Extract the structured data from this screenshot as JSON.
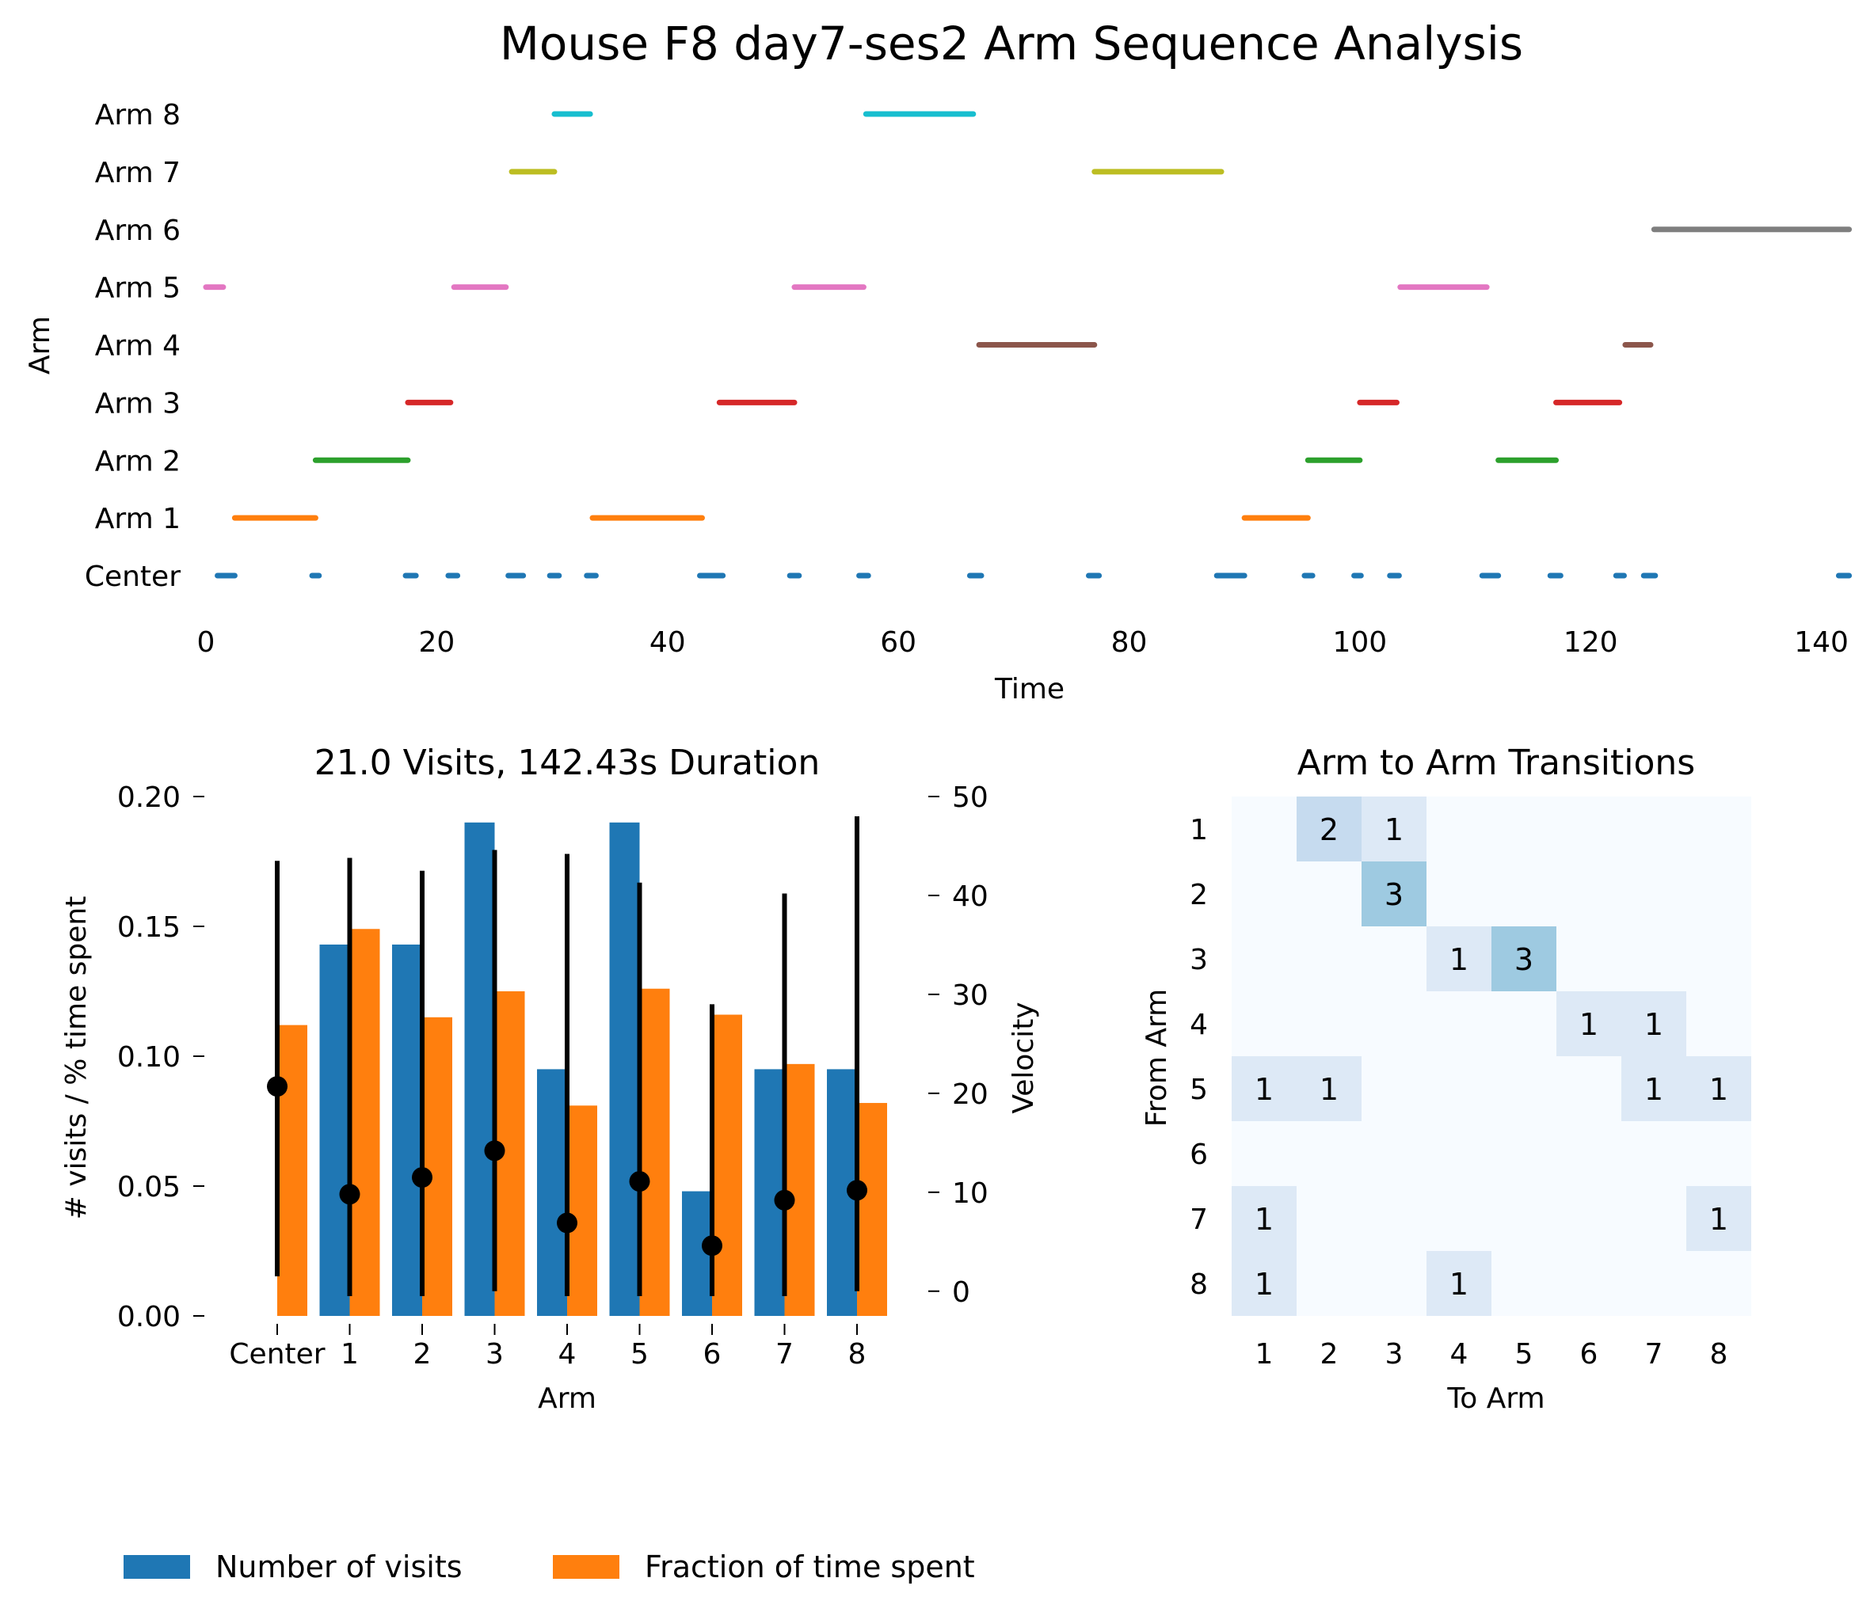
{
  "figure_title": "Mouse F8 day7-ses2 Arm Sequence Analysis",
  "colors": {
    "Center": "#1f77b4",
    "Arm 1": "#ff7f0e",
    "Arm 2": "#2ca02c",
    "Arm 3": "#d62728",
    "Arm 4": "#8c564b",
    "Arm 5": "#e377c2",
    "Arm 6": "#7f7f7f",
    "Arm 7": "#bcbd22",
    "Arm 8": "#17becf",
    "visits": "#1f77b4",
    "time": "#ff7f0e",
    "velocity": "#000000"
  },
  "legend": {
    "visits_label": "Number of visits",
    "time_label": "Fraction of time spent"
  },
  "chart_data": [
    {
      "type": "timeline",
      "title": "Mouse F8 day7-ses2 Arm Sequence Analysis",
      "xlabel": "Time",
      "ylabel": "Arm",
      "xlim": [
        0,
        142.43
      ],
      "xticks": [
        0,
        20,
        40,
        60,
        80,
        100,
        120,
        140
      ],
      "categories": [
        "Center",
        "Arm 1",
        "Arm 2",
        "Arm 3",
        "Arm 4",
        "Arm 5",
        "Arm 6",
        "Arm 7",
        "Arm 8"
      ],
      "segments": {
        "Center": [
          [
            1,
            2.5
          ],
          [
            9.2,
            9.8
          ],
          [
            17.3,
            18.2
          ],
          [
            21,
            21.8
          ],
          [
            26.2,
            27.5
          ],
          [
            29.8,
            30.6
          ],
          [
            33,
            33.8
          ],
          [
            42.8,
            44.8
          ],
          [
            50.6,
            51.4
          ],
          [
            56.6,
            57.4
          ],
          [
            66.2,
            67.2
          ],
          [
            76.5,
            77.4
          ],
          [
            87.6,
            90
          ],
          [
            95.2,
            95.9
          ],
          [
            99.5,
            100.1
          ],
          [
            102.6,
            103.4
          ],
          [
            110.6,
            112
          ],
          [
            116.5,
            117.4
          ],
          [
            122.2,
            122.9
          ],
          [
            124.6,
            125.6
          ],
          [
            141.5,
            142.4
          ]
        ],
        "Arm 1": [
          [
            2.5,
            9.5
          ],
          [
            33.5,
            43
          ],
          [
            90,
            95.5
          ]
        ],
        "Arm 2": [
          [
            9.5,
            17.5
          ],
          [
            95.5,
            100
          ],
          [
            112,
            117
          ]
        ],
        "Arm 3": [
          [
            17.5,
            21.2
          ],
          [
            44.5,
            51
          ],
          [
            100,
            103.2
          ],
          [
            117,
            122.5
          ]
        ],
        "Arm 4": [
          [
            67,
            77
          ],
          [
            123,
            125.2
          ]
        ],
        "Arm 5": [
          [
            0,
            1.5
          ],
          [
            21.5,
            26
          ],
          [
            51,
            57
          ],
          [
            103.5,
            111
          ]
        ],
        "Arm 6": [
          [
            125.5,
            142.4
          ]
        ],
        "Arm 7": [
          [
            26.5,
            30.2
          ],
          [
            77,
            88
          ]
        ],
        "Arm 8": [
          [
            30.2,
            33.3
          ],
          [
            57.2,
            66.5
          ]
        ]
      }
    },
    {
      "type": "bar",
      "title": "21.0 Visits, 142.43s Duration",
      "xlabel": "Arm",
      "ylabel": "# visits / % time spent",
      "y2label": "Velocity",
      "ylim": [
        0,
        0.2
      ],
      "yticks": [
        "0.00",
        "0.05",
        "0.10",
        "0.15",
        "0.20"
      ],
      "y2lim": [
        -2.5,
        50
      ],
      "y2ticks": [
        0,
        10,
        20,
        30,
        40,
        50
      ],
      "categories": [
        "Center",
        "1",
        "2",
        "3",
        "4",
        "5",
        "6",
        "7",
        "8"
      ],
      "series": [
        {
          "name": "Number of visits",
          "values": [
            null,
            0.143,
            0.143,
            0.19,
            0.095,
            0.19,
            0.048,
            0.095,
            0.095
          ]
        },
        {
          "name": "Fraction of time spent",
          "values": [
            0.112,
            0.149,
            0.115,
            0.125,
            0.081,
            0.126,
            0.116,
            0.097,
            0.082
          ]
        }
      ],
      "velocity": {
        "mean": [
          20.7,
          9.8,
          11.5,
          14.2,
          6.9,
          11.1,
          4.6,
          9.2,
          10.2
        ],
        "low": [
          1.5,
          -0.5,
          -0.5,
          0.0,
          -0.5,
          -0.5,
          -0.5,
          -0.5,
          0.0
        ],
        "high": [
          43.5,
          43.8,
          42.5,
          44.6,
          44.2,
          41.3,
          29.0,
          40.2,
          48.0
        ]
      }
    },
    {
      "type": "heatmap",
      "title": "Arm to Arm Transitions",
      "xlabel": "To Arm",
      "ylabel": "From Arm",
      "row_labels": [
        "1",
        "2",
        "3",
        "4",
        "5",
        "6",
        "7",
        "8"
      ],
      "col_labels": [
        "1",
        "2",
        "3",
        "4",
        "5",
        "6",
        "7",
        "8"
      ],
      "values": [
        [
          0,
          2,
          1,
          0,
          0,
          0,
          0,
          0
        ],
        [
          0,
          0,
          3,
          0,
          0,
          0,
          0,
          0
        ],
        [
          0,
          0,
          0,
          1,
          3,
          0,
          0,
          0
        ],
        [
          0,
          0,
          0,
          0,
          0,
          1,
          1,
          0
        ],
        [
          1,
          1,
          0,
          0,
          0,
          0,
          1,
          1
        ],
        [
          0,
          0,
          0,
          0,
          0,
          0,
          0,
          0
        ],
        [
          1,
          0,
          0,
          0,
          0,
          0,
          0,
          1
        ],
        [
          1,
          0,
          0,
          1,
          0,
          0,
          0,
          0
        ]
      ],
      "cell_colors": {
        "0": "#f7fbff",
        "1": "#dde9f6",
        "2": "#c6dbef",
        "3": "#9ecae1"
      }
    }
  ]
}
